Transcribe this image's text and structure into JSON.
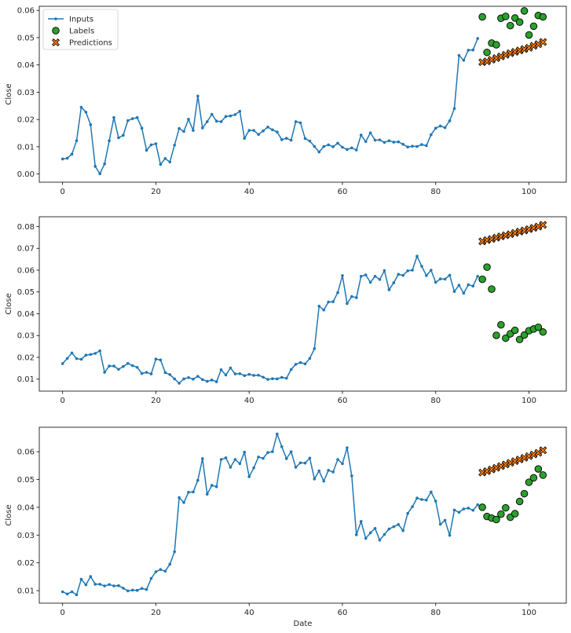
{
  "chart_data": [
    {
      "type": "line",
      "xlabel": "",
      "ylabel": "Close",
      "xlim": [
        -5,
        108
      ],
      "ylim": [
        -0.003,
        0.0615
      ],
      "xticks": [
        0,
        20,
        40,
        60,
        80,
        100
      ],
      "yticks": [
        0.0,
        0.01,
        0.02,
        0.03,
        0.04,
        0.05,
        0.06
      ],
      "ytick_labels": [
        "0.00",
        "0.01",
        "0.02",
        "0.03",
        "0.04",
        "0.05",
        "0.06"
      ],
      "legend": {
        "position": "top-left",
        "entries": [
          "Inputs",
          "Labels",
          "Predictions"
        ]
      },
      "series": [
        {
          "name": "Inputs",
          "kind": "line-marker",
          "color": "#1f77b4",
          "x_start": 0,
          "values": [
            0.0055,
            0.0058,
            0.0073,
            0.0122,
            0.0245,
            0.0227,
            0.0181,
            0.0028,
            0.0001,
            0.0037,
            0.0122,
            0.0207,
            0.0133,
            0.0142,
            0.0196,
            0.0203,
            0.0207,
            0.0168,
            0.0087,
            0.0107,
            0.0111,
            0.0035,
            0.0057,
            0.0044,
            0.0106,
            0.0167,
            0.0156,
            0.0201,
            0.016,
            0.0286,
            0.0169,
            0.0192,
            0.0219,
            0.0194,
            0.0192,
            0.0211,
            0.0213,
            0.0218,
            0.023,
            0.0131,
            0.016,
            0.016,
            0.0145,
            0.0158,
            0.0172,
            0.0162,
            0.0154,
            0.0126,
            0.0131,
            0.0124,
            0.0192,
            0.0188,
            0.013,
            0.0121,
            0.0101,
            0.0081,
            0.0101,
            0.0107,
            0.01,
            0.0113,
            0.0098,
            0.009,
            0.0096,
            0.0088,
            0.0143,
            0.0119,
            0.0151,
            0.0124,
            0.0125,
            0.0116,
            0.0122,
            0.0117,
            0.0118,
            0.0109,
            0.0099,
            0.0102,
            0.0101,
            0.0108,
            0.0104,
            0.0144,
            0.0168,
            0.0176,
            0.017,
            0.0195,
            0.024,
            0.0435,
            0.0417,
            0.0454,
            0.0455,
            0.0497
          ]
        },
        {
          "name": "Labels",
          "kind": "scatter",
          "color": "#2ca02c",
          "x_start": 90,
          "values": [
            0.0576,
            0.0446,
            0.048,
            0.0474,
            0.0571,
            0.0578,
            0.0544,
            0.0572,
            0.0557,
            0.0598,
            0.051,
            0.0542,
            0.0581,
            0.0576
          ]
        },
        {
          "name": "Predictions",
          "kind": "scatter-x",
          "color": "#ff7f0e",
          "x_start": 90,
          "values": [
            0.041,
            0.0413,
            0.0419,
            0.0425,
            0.0431,
            0.0437,
            0.0443,
            0.0448,
            0.0453,
            0.0458,
            0.0463,
            0.047,
            0.0476,
            0.0484
          ]
        }
      ]
    },
    {
      "type": "line",
      "xlabel": "",
      "ylabel": "Close",
      "xlim": [
        -5,
        108
      ],
      "ylim": [
        0.0045,
        0.0845
      ],
      "xticks": [
        0,
        20,
        40,
        60,
        80,
        100
      ],
      "yticks": [
        0.01,
        0.02,
        0.03,
        0.04,
        0.05,
        0.06,
        0.07,
        0.08
      ],
      "ytick_labels": [
        "0.01",
        "0.02",
        "0.03",
        "0.04",
        "0.05",
        "0.06",
        "0.07",
        "0.08"
      ],
      "series": [
        {
          "name": "Inputs",
          "kind": "line-marker",
          "color": "#1f77b4",
          "x_start": 0,
          "values": [
            0.0171,
            0.0195,
            0.022,
            0.0194,
            0.0191,
            0.021,
            0.0213,
            0.0218,
            0.023,
            0.0131,
            0.016,
            0.016,
            0.0145,
            0.0158,
            0.0172,
            0.0162,
            0.0154,
            0.0126,
            0.0131,
            0.0124,
            0.0192,
            0.0188,
            0.013,
            0.0121,
            0.0101,
            0.0081,
            0.0101,
            0.0107,
            0.01,
            0.0113,
            0.0098,
            0.009,
            0.0096,
            0.0088,
            0.0143,
            0.0119,
            0.0151,
            0.0124,
            0.0125,
            0.0116,
            0.0122,
            0.0117,
            0.0118,
            0.0109,
            0.0099,
            0.0102,
            0.0101,
            0.0108,
            0.0104,
            0.0144,
            0.0168,
            0.0176,
            0.017,
            0.0195,
            0.024,
            0.0435,
            0.0417,
            0.0454,
            0.0455,
            0.0497,
            0.0575,
            0.0447,
            0.0479,
            0.0474,
            0.0572,
            0.0578,
            0.0544,
            0.0572,
            0.0557,
            0.0598,
            0.051,
            0.0542,
            0.0581,
            0.0576,
            0.0597,
            0.06,
            0.0664,
            0.0618,
            0.0575,
            0.06,
            0.0544,
            0.056,
            0.0559,
            0.0577,
            0.0502,
            0.0531,
            0.0494,
            0.0533,
            0.0527,
            0.0572
          ]
        },
        {
          "name": "Labels",
          "kind": "scatter",
          "color": "#2ca02c",
          "x_start": 90,
          "values": [
            0.0558,
            0.0614,
            0.0513,
            0.0301,
            0.0349,
            0.0288,
            0.0308,
            0.0324,
            0.0282,
            0.0302,
            0.0322,
            0.033,
            0.0338,
            0.0316
          ]
        },
        {
          "name": "Predictions",
          "kind": "scatter-x",
          "color": "#ff7f0e",
          "x_start": 90,
          "values": [
            0.0732,
            0.0738,
            0.0743,
            0.0749,
            0.0755,
            0.076,
            0.0765,
            0.0771,
            0.0777,
            0.0782,
            0.0788,
            0.0794,
            0.08,
            0.0808
          ]
        }
      ]
    },
    {
      "type": "line",
      "xlabel": "Date",
      "ylabel": "Close",
      "xlim": [
        -5,
        108
      ],
      "ylim": [
        0.0055,
        0.0688
      ],
      "xticks": [
        0,
        20,
        40,
        60,
        80,
        100
      ],
      "yticks": [
        0.01,
        0.02,
        0.03,
        0.04,
        0.05,
        0.06
      ],
      "ytick_labels": [
        "0.01",
        "0.02",
        "0.03",
        "0.04",
        "0.05",
        "0.06"
      ],
      "series": [
        {
          "name": "Inputs",
          "kind": "line-marker",
          "color": "#1f77b4",
          "x_start": 0,
          "values": [
            0.0096,
            0.0088,
            0.0096,
            0.0085,
            0.0141,
            0.0121,
            0.0151,
            0.0123,
            0.0123,
            0.0117,
            0.0122,
            0.0117,
            0.0118,
            0.0109,
            0.0099,
            0.0102,
            0.0101,
            0.0108,
            0.0104,
            0.0144,
            0.0168,
            0.0176,
            0.017,
            0.0195,
            0.024,
            0.0435,
            0.0417,
            0.0454,
            0.0455,
            0.0497,
            0.0575,
            0.0447,
            0.0479,
            0.0474,
            0.0572,
            0.0578,
            0.0544,
            0.0572,
            0.0557,
            0.0598,
            0.051,
            0.0542,
            0.0581,
            0.0576,
            0.0597,
            0.06,
            0.0664,
            0.0618,
            0.0575,
            0.06,
            0.0544,
            0.056,
            0.0559,
            0.0577,
            0.0502,
            0.0531,
            0.0494,
            0.0533,
            0.0527,
            0.0572,
            0.0557,
            0.0614,
            0.0513,
            0.0301,
            0.0349,
            0.0288,
            0.0308,
            0.0324,
            0.0282,
            0.0302,
            0.0322,
            0.033,
            0.0338,
            0.0316,
            0.0378,
            0.0402,
            0.0433,
            0.0428,
            0.0426,
            0.0455,
            0.0422,
            0.0339,
            0.0353,
            0.0299,
            0.039,
            0.0382,
            0.0394,
            0.0397,
            0.0389,
            0.0409
          ]
        },
        {
          "name": "Labels",
          "kind": "scatter",
          "color": "#2ca02c",
          "x_start": 90,
          "values": [
            0.04,
            0.0367,
            0.0361,
            0.0356,
            0.0375,
            0.0398,
            0.0364,
            0.0377,
            0.0421,
            0.0449,
            0.049,
            0.0506,
            0.0538,
            0.0516
          ]
        },
        {
          "name": "Predictions",
          "kind": "scatter-x",
          "color": "#ff7f0e",
          "x_start": 90,
          "values": [
            0.0525,
            0.053,
            0.0536,
            0.0542,
            0.0548,
            0.0554,
            0.056,
            0.0566,
            0.0572,
            0.0578,
            0.0584,
            0.059,
            0.0596,
            0.0605
          ]
        }
      ]
    }
  ]
}
